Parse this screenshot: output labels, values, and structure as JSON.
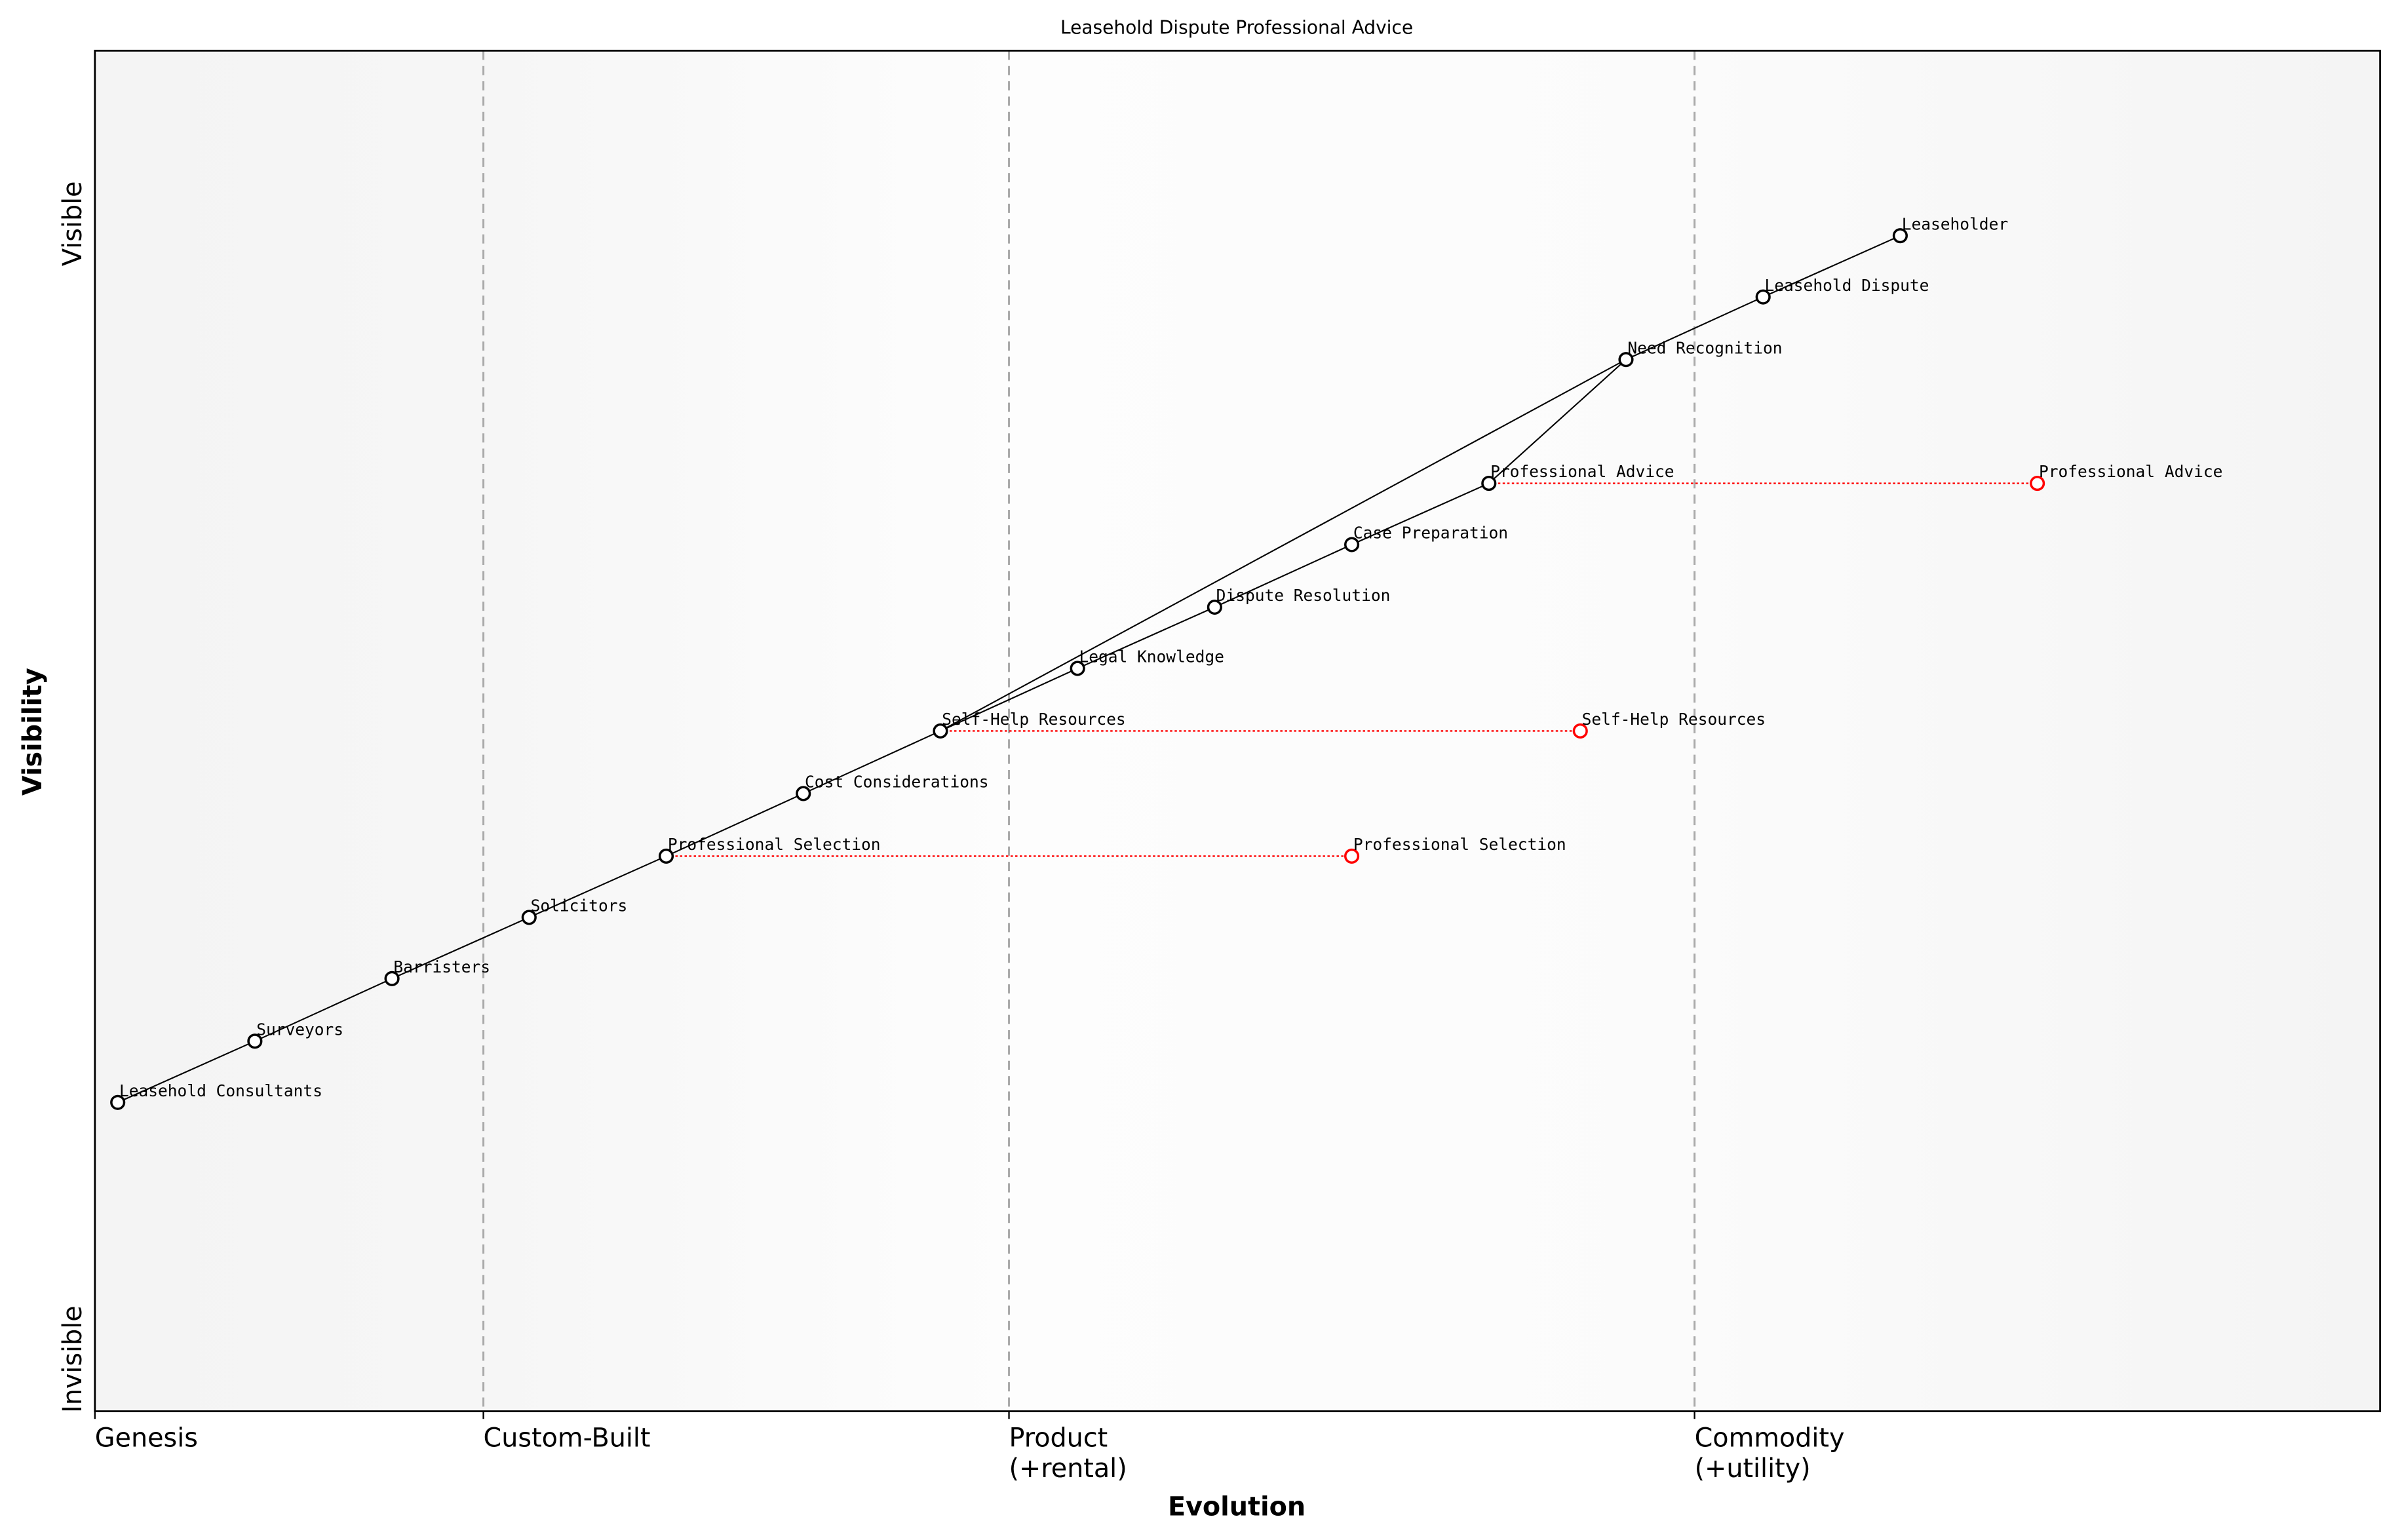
{
  "chart_data": {
    "type": "wardley-map",
    "title": "Leasehold Dispute Professional Advice",
    "xlabel": "Evolution",
    "ylabel": "Visibility",
    "y_ticks": {
      "top": "Visible",
      "bottom": "Invisible"
    },
    "stages": [
      {
        "label": "Genesis",
        "line2": "",
        "x": 0.0
      },
      {
        "label": "Custom-Built",
        "line2": "",
        "x": 0.17
      },
      {
        "label": "Product",
        "line2": "(+rental)",
        "x": 0.4
      },
      {
        "label": "Commodity",
        "line2": "(+utility)",
        "x": 0.7
      }
    ],
    "xlim": [
      0,
      1
    ],
    "ylim": [
      0,
      1
    ],
    "components": [
      {
        "name": "Leaseholder",
        "evolution": 0.79,
        "visibility": 0.864
      },
      {
        "name": "Leasehold Dispute",
        "evolution": 0.73,
        "visibility": 0.819
      },
      {
        "name": "Need Recognition",
        "evolution": 0.67,
        "visibility": 0.773
      },
      {
        "name": "Professional Advice",
        "evolution": 0.61,
        "visibility": 0.682
      },
      {
        "name": "Case Preparation",
        "evolution": 0.55,
        "visibility": 0.637
      },
      {
        "name": "Dispute Resolution",
        "evolution": 0.49,
        "visibility": 0.591
      },
      {
        "name": "Legal Knowledge",
        "evolution": 0.43,
        "visibility": 0.546
      },
      {
        "name": "Self-Help Resources",
        "evolution": 0.37,
        "visibility": 0.5
      },
      {
        "name": "Cost Considerations",
        "evolution": 0.31,
        "visibility": 0.454
      },
      {
        "name": "Professional Selection",
        "evolution": 0.25,
        "visibility": 0.408
      },
      {
        "name": "Solicitors",
        "evolution": 0.19,
        "visibility": 0.363
      },
      {
        "name": "Barristers",
        "evolution": 0.13,
        "visibility": 0.318
      },
      {
        "name": "Surveyors",
        "evolution": 0.07,
        "visibility": 0.272
      },
      {
        "name": "Leasehold Consultants",
        "evolution": 0.01,
        "visibility": 0.227
      }
    ],
    "links": [
      [
        "Leaseholder",
        "Leasehold Dispute"
      ],
      [
        "Leasehold Dispute",
        "Need Recognition"
      ],
      [
        "Need Recognition",
        "Professional Advice"
      ],
      [
        "Need Recognition",
        "Self-Help Resources"
      ],
      [
        "Professional Advice",
        "Case Preparation"
      ],
      [
        "Case Preparation",
        "Dispute Resolution"
      ],
      [
        "Dispute Resolution",
        "Legal Knowledge"
      ],
      [
        "Legal Knowledge",
        "Self-Help Resources"
      ],
      [
        "Self-Help Resources",
        "Cost Considerations"
      ],
      [
        "Cost Considerations",
        "Professional Selection"
      ],
      [
        "Professional Selection",
        "Solicitors"
      ],
      [
        "Solicitors",
        "Barristers"
      ],
      [
        "Barristers",
        "Surveyors"
      ],
      [
        "Surveyors",
        "Leasehold Consultants"
      ]
    ],
    "evolving": [
      {
        "name": "Professional Advice",
        "from": 0.61,
        "to": 0.85,
        "visibility": 0.682
      },
      {
        "name": "Self-Help Resources",
        "from": 0.37,
        "to": 0.65,
        "visibility": 0.5
      },
      {
        "name": "Professional Selection",
        "from": 0.25,
        "to": 0.55,
        "visibility": 0.408
      }
    ],
    "colors": {
      "node": "#000000",
      "evolved": "#ff0000",
      "stage_line": "#aaaaaa"
    }
  }
}
